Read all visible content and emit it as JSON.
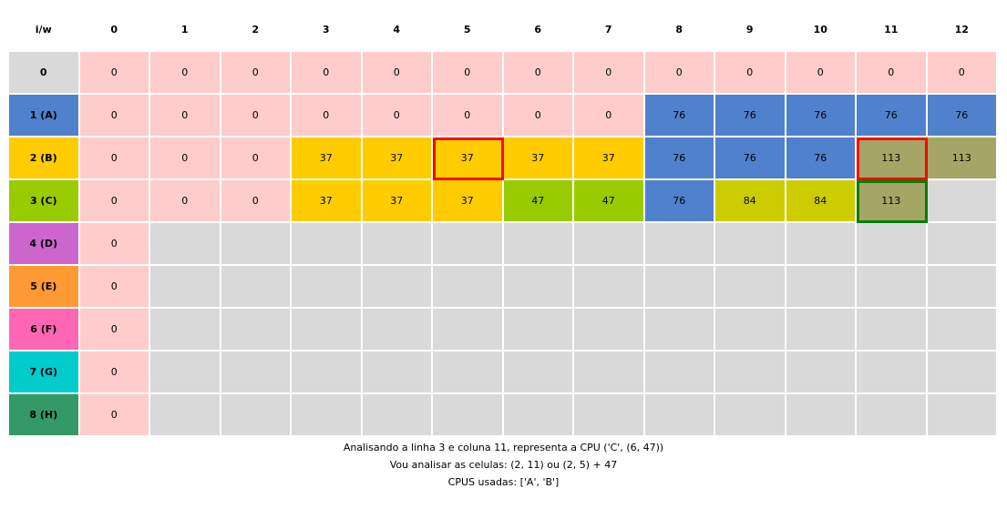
{
  "corner_label": "i/w",
  "column_headers": [
    "0",
    "1",
    "2",
    "3",
    "4",
    "5",
    "6",
    "7",
    "8",
    "9",
    "10",
    "11",
    "12"
  ],
  "rows": [
    {
      "label": "0",
      "label_color": "#d9d9d9",
      "values": [
        "0",
        "0",
        "0",
        "0",
        "0",
        "0",
        "0",
        "0",
        "0",
        "0",
        "0",
        "0",
        "0"
      ],
      "colors": [
        "#ffcccc",
        "#ffcccc",
        "#ffcccc",
        "#ffcccc",
        "#ffcccc",
        "#ffcccc",
        "#ffcccc",
        "#ffcccc",
        "#ffcccc",
        "#ffcccc",
        "#ffcccc",
        "#ffcccc",
        "#ffcccc"
      ]
    },
    {
      "label": "1 (A)",
      "label_color": "#4f81cc",
      "values": [
        "0",
        "0",
        "0",
        "0",
        "0",
        "0",
        "0",
        "0",
        "76",
        "76",
        "76",
        "76",
        "76"
      ],
      "colors": [
        "#ffcccc",
        "#ffcccc",
        "#ffcccc",
        "#ffcccc",
        "#ffcccc",
        "#ffcccc",
        "#ffcccc",
        "#ffcccc",
        "#4f81cc",
        "#4f81cc",
        "#4f81cc",
        "#4f81cc",
        "#4f81cc"
      ]
    },
    {
      "label": "2 (B)",
      "label_color": "#ffcc00",
      "values": [
        "0",
        "0",
        "0",
        "37",
        "37",
        "37",
        "37",
        "37",
        "76",
        "76",
        "76",
        "113",
        "113"
      ],
      "colors": [
        "#ffcccc",
        "#ffcccc",
        "#ffcccc",
        "#ffcc00",
        "#ffcc00",
        "#ffcc00",
        "#ffcc00",
        "#ffcc00",
        "#4f81cc",
        "#4f81cc",
        "#4f81cc",
        "#a5a566",
        "#a5a566"
      ]
    },
    {
      "label": "3 (C)",
      "label_color": "#99cc00",
      "values": [
        "0",
        "0",
        "0",
        "37",
        "37",
        "37",
        "47",
        "47",
        "76",
        "84",
        "84",
        "113",
        ""
      ],
      "colors": [
        "#ffcccc",
        "#ffcccc",
        "#ffcccc",
        "#ffcc00",
        "#ffcc00",
        "#ffcc00",
        "#99cc00",
        "#99cc00",
        "#4f81cc",
        "#cccc00",
        "#cccc00",
        "#a5a566",
        "#d9d9d9"
      ]
    },
    {
      "label": "4 (D)",
      "label_color": "#cc66cc",
      "values": [
        "0",
        "",
        "",
        "",
        "",
        "",
        "",
        "",
        "",
        "",
        "",
        "",
        ""
      ],
      "colors": [
        "#ffcccc",
        "#d9d9d9",
        "#d9d9d9",
        "#d9d9d9",
        "#d9d9d9",
        "#d9d9d9",
        "#d9d9d9",
        "#d9d9d9",
        "#d9d9d9",
        "#d9d9d9",
        "#d9d9d9",
        "#d9d9d9",
        "#d9d9d9"
      ]
    },
    {
      "label": "5 (E)",
      "label_color": "#ff9933",
      "values": [
        "0",
        "",
        "",
        "",
        "",
        "",
        "",
        "",
        "",
        "",
        "",
        "",
        ""
      ],
      "colors": [
        "#ffcccc",
        "#d9d9d9",
        "#d9d9d9",
        "#d9d9d9",
        "#d9d9d9",
        "#d9d9d9",
        "#d9d9d9",
        "#d9d9d9",
        "#d9d9d9",
        "#d9d9d9",
        "#d9d9d9",
        "#d9d9d9",
        "#d9d9d9"
      ]
    },
    {
      "label": "6 (F)",
      "label_color": "#ff66b3",
      "values": [
        "0",
        "",
        "",
        "",
        "",
        "",
        "",
        "",
        "",
        "",
        "",
        "",
        ""
      ],
      "colors": [
        "#ffcccc",
        "#d9d9d9",
        "#d9d9d9",
        "#d9d9d9",
        "#d9d9d9",
        "#d9d9d9",
        "#d9d9d9",
        "#d9d9d9",
        "#d9d9d9",
        "#d9d9d9",
        "#d9d9d9",
        "#d9d9d9",
        "#d9d9d9"
      ]
    },
    {
      "label": "7 (G)",
      "label_color": "#00cccc",
      "values": [
        "0",
        "",
        "",
        "",
        "",
        "",
        "",
        "",
        "",
        "",
        "",
        "",
        ""
      ],
      "colors": [
        "#ffcccc",
        "#d9d9d9",
        "#d9d9d9",
        "#d9d9d9",
        "#d9d9d9",
        "#d9d9d9",
        "#d9d9d9",
        "#d9d9d9",
        "#d9d9d9",
        "#d9d9d9",
        "#d9d9d9",
        "#d9d9d9",
        "#d9d9d9"
      ]
    },
    {
      "label": "8 (H)",
      "label_color": "#339966",
      "values": [
        "0",
        "",
        "",
        "",
        "",
        "",
        "",
        "",
        "",
        "",
        "",
        "",
        ""
      ],
      "colors": [
        "#ffcccc",
        "#d9d9d9",
        "#d9d9d9",
        "#d9d9d9",
        "#d9d9d9",
        "#d9d9d9",
        "#d9d9d9",
        "#d9d9d9",
        "#d9d9d9",
        "#d9d9d9",
        "#d9d9d9",
        "#d9d9d9",
        "#d9d9d9"
      ]
    }
  ],
  "highlights": [
    {
      "row": 2,
      "col": 5,
      "color": "red"
    },
    {
      "row": 2,
      "col": 11,
      "color": "red"
    },
    {
      "row": 3,
      "col": 11,
      "color": "green"
    }
  ],
  "caption": {
    "line1": "Analisando a linha 3 e coluna 11, representa a CPU ('C', (6, 47))",
    "line2": "Vou analisar as celulas: (2, 11) ou (2, 5) + 47",
    "line3": "CPUS usadas: ['A', 'B']"
  }
}
